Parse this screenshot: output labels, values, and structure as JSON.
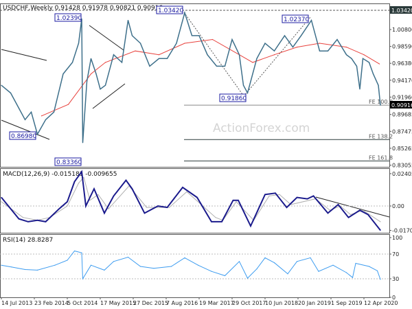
{
  "header": {
    "symbol_line": "USDCHF,Weekly  0.91428 0.91978 0.90821 0.90916"
  },
  "watermark": "ActionForex.com",
  "colors": {
    "price": "#3d6f8a",
    "ma": "#e8413c",
    "macd": "#1a1a8c",
    "signal": "#b0b0b0",
    "rsi": "#3d9cf0",
    "trend": "#222222"
  },
  "chart_data": [
    {
      "type": "line",
      "panel": "price",
      "ylim": [
        0.83055,
        1.0342
      ],
      "y_ticks": [
        "1.00800",
        "0.98590",
        "0.96380",
        "0.94170",
        "0.91960",
        "0.89685",
        "0.87475",
        "0.85265",
        "0.83055"
      ],
      "y_tick_values": [
        1.008,
        0.9859,
        0.9638,
        0.9417,
        0.9196,
        0.89685,
        0.87475,
        0.85265,
        0.83055
      ],
      "last_price_label": "0.90916",
      "top_label": "1.03420",
      "series": [
        {
          "key": "close",
          "points": [
            [
              "2013-07-14",
              0.935
            ],
            [
              "2013-09-15",
              0.925
            ],
            [
              "2013-11-10",
              0.905
            ],
            [
              "2013-12-22",
              0.89
            ],
            [
              "2014-02-02",
              0.9
            ],
            [
              "2014-03-16",
              0.871
            ],
            [
              "2014-05-11",
              0.89
            ],
            [
              "2014-07-06",
              0.9
            ],
            [
              "2014-09-07",
              0.95
            ],
            [
              "2014-11-09",
              0.965
            ],
            [
              "2014-12-21",
              0.99
            ],
            [
              "2015-01-11",
              1.022
            ],
            [
              "2015-01-18",
              0.86
            ],
            [
              "2015-02-15",
              0.94
            ],
            [
              "2015-03-15",
              0.97
            ],
            [
              "2015-04-19",
              0.95
            ],
            [
              "2015-05-17",
              0.93
            ],
            [
              "2015-06-21",
              0.935
            ],
            [
              "2015-08-16",
              0.975
            ],
            [
              "2015-10-11",
              0.965
            ],
            [
              "2015-11-22",
              1.02
            ],
            [
              "2015-12-20",
              1.0
            ],
            [
              "2016-02-14",
              0.99
            ],
            [
              "2016-04-17",
              0.96
            ],
            [
              "2016-06-19",
              0.97
            ],
            [
              "2016-08-14",
              0.97
            ],
            [
              "2016-10-16",
              0.99
            ],
            [
              "2016-12-11",
              1.03
            ],
            [
              "2017-01-29",
              1.0
            ],
            [
              "2017-03-19",
              1.0
            ],
            [
              "2017-05-14",
              0.975
            ],
            [
              "2017-07-16",
              0.96
            ],
            [
              "2017-09-10",
              0.96
            ],
            [
              "2017-10-29",
              0.995
            ],
            [
              "2017-12-17",
              0.975
            ],
            [
              "2018-01-14",
              0.935
            ],
            [
              "2018-02-11",
              0.925
            ],
            [
              "2018-04-15",
              0.97
            ],
            [
              "2018-06-10",
              0.99
            ],
            [
              "2018-08-12",
              0.98
            ],
            [
              "2018-10-21",
              1.0
            ],
            [
              "2018-12-16",
              0.985
            ],
            [
              "2019-02-10",
              1.0
            ],
            [
              "2019-04-21",
              1.02
            ],
            [
              "2019-06-16",
              0.98
            ],
            [
              "2019-08-11",
              0.98
            ],
            [
              "2019-10-13",
              0.995
            ],
            [
              "2019-12-15",
              0.975
            ],
            [
              "2020-01-19",
              0.97
            ],
            [
              "2020-02-23",
              0.96
            ],
            [
              "2020-03-15",
              0.93
            ],
            [
              "2020-04-05",
              0.97
            ],
            [
              "2020-05-17",
              0.965
            ],
            [
              "2020-06-14",
              0.95
            ],
            [
              "2020-07-19",
              0.935
            ],
            [
              "2020-08-02",
              0.909
            ]
          ]
        },
        {
          "key": "ma",
          "points": [
            [
              "2014-04-13",
              0.895
            ],
            [
              "2014-10-12",
              0.91
            ],
            [
              "2015-03-15",
              0.95
            ],
            [
              "2015-06-21",
              0.965
            ],
            [
              "2016-01-10",
              0.98
            ],
            [
              "2016-06-19",
              0.975
            ],
            [
              "2016-12-11",
              0.99
            ],
            [
              "2017-06-18",
              0.995
            ],
            [
              "2017-12-17",
              0.975
            ],
            [
              "2018-03-18",
              0.965
            ],
            [
              "2018-08-12",
              0.975
            ],
            [
              "2019-01-13",
              0.985
            ],
            [
              "2019-06-16",
              0.99
            ],
            [
              "2019-12-15",
              0.985
            ],
            [
              "2020-04-12",
              0.975
            ],
            [
              "2020-07-26",
              0.963
            ]
          ]
        }
      ],
      "annotations": {
        "price_labels": [
          "1.02390",
          "1.03420",
          "1.02370",
          "0.91860",
          "0.86980",
          "0.83360"
        ],
        "fib_levels": [
          {
            "label": "FE 100.0",
            "price": 0.909
          },
          {
            "label": "FE 138.2",
            "price": 0.864
          },
          {
            "label": "FE 161.8",
            "price": 0.836
          }
        ]
      }
    },
    {
      "type": "line",
      "panel": "macd",
      "title": "MACD(12,26,9) -0.015181 -0.009655",
      "ylim": [
        -0.017049,
        0.02405
      ],
      "y_ticks": [
        "0.02405",
        "0.00",
        "-0.017049"
      ],
      "series": [
        {
          "key": "macd",
          "points": [
            [
              "2013-07-14",
              0.006
            ],
            [
              "2013-11-10",
              -0.009
            ],
            [
              "2014-01-12",
              -0.011
            ],
            [
              "2014-03-16",
              -0.01
            ],
            [
              "2014-05-11",
              -0.011
            ],
            [
              "2014-08-10",
              -0.002
            ],
            [
              "2014-10-05",
              0.003
            ],
            [
              "2014-11-23",
              0.017
            ],
            [
              "2015-01-11",
              0.024
            ],
            [
              "2015-02-08",
              0.0
            ],
            [
              "2015-04-05",
              0.012
            ],
            [
              "2015-06-14",
              -0.005
            ],
            [
              "2015-08-16",
              0.007
            ],
            [
              "2015-11-08",
              0.018
            ],
            [
              "2015-12-20",
              0.012
            ],
            [
              "2016-03-13",
              -0.005
            ],
            [
              "2016-06-12",
              0.0
            ],
            [
              "2016-08-14",
              -0.001
            ],
            [
              "2016-11-27",
              0.013
            ],
            [
              "2017-03-05",
              0.006
            ],
            [
              "2017-06-11",
              -0.011
            ],
            [
              "2017-08-20",
              -0.011
            ],
            [
              "2017-11-05",
              0.004
            ],
            [
              "2017-12-10",
              0.004
            ],
            [
              "2018-03-04",
              -0.014
            ],
            [
              "2018-06-10",
              0.008
            ],
            [
              "2018-08-19",
              0.009
            ],
            [
              "2018-11-04",
              -0.001
            ],
            [
              "2019-01-13",
              0.006
            ],
            [
              "2019-03-24",
              0.005
            ],
            [
              "2019-05-05",
              0.007
            ],
            [
              "2019-08-11",
              -0.005
            ],
            [
              "2019-10-20",
              0.001
            ],
            [
              "2019-12-29",
              -0.008
            ],
            [
              "2020-03-15",
              -0.003
            ],
            [
              "2020-05-10",
              -0.006
            ],
            [
              "2020-08-02",
              -0.017
            ]
          ]
        },
        {
          "key": "signal",
          "points": [
            [
              "2013-07-14",
              0.003
            ],
            [
              "2013-12-08",
              -0.008
            ],
            [
              "2014-03-16",
              -0.01
            ],
            [
              "2014-06-08",
              -0.008
            ],
            [
              "2014-10-05",
              0.0
            ],
            [
              "2014-12-21",
              0.016
            ],
            [
              "2015-01-25",
              0.02
            ],
            [
              "2015-03-08",
              0.004
            ],
            [
              "2015-05-03",
              0.008
            ],
            [
              "2015-07-12",
              -0.002
            ],
            [
              "2015-11-29",
              0.014
            ],
            [
              "2016-03-27",
              -0.001
            ],
            [
              "2016-08-28",
              -0.001
            ],
            [
              "2016-12-25",
              0.01
            ],
            [
              "2017-07-09",
              -0.008
            ],
            [
              "2017-08-27",
              -0.01
            ],
            [
              "2017-11-26",
              0.003
            ],
            [
              "2018-03-25",
              -0.01
            ],
            [
              "2018-07-08",
              0.007
            ],
            [
              "2018-09-16",
              0.008
            ],
            [
              "2018-12-02",
              0.001
            ],
            [
              "2019-05-19",
              0.005
            ],
            [
              "2019-08-25",
              -0.003
            ],
            [
              "2019-11-03",
              0.0
            ],
            [
              "2020-01-12",
              -0.006
            ],
            [
              "2020-04-05",
              -0.003
            ],
            [
              "2020-08-02",
              -0.011
            ]
          ]
        }
      ]
    },
    {
      "type": "line",
      "panel": "rsi",
      "title": "RSI(14) 28.8287",
      "ylim": [
        0,
        100
      ],
      "y_ticks": [
        "100",
        "70",
        "30",
        "0"
      ],
      "series": [
        {
          "key": "rsi",
          "points": [
            [
              "2013-07-14",
              52
            ],
            [
              "2013-09-22",
              49
            ],
            [
              "2013-12-22",
              45
            ],
            [
              "2014-03-16",
              44
            ],
            [
              "2014-07-13",
              52
            ],
            [
              "2014-10-05",
              60
            ],
            [
              "2014-11-23",
              75
            ],
            [
              "2015-01-11",
              72
            ],
            [
              "2015-01-18",
              30
            ],
            [
              "2015-03-15",
              52
            ],
            [
              "2015-06-14",
              44
            ],
            [
              "2015-08-16",
              58
            ],
            [
              "2015-11-22",
              65
            ],
            [
              "2016-02-14",
              50
            ],
            [
              "2016-05-15",
              47
            ],
            [
              "2016-09-11",
              50
            ],
            [
              "2016-12-11",
              64
            ],
            [
              "2017-03-12",
              52
            ],
            [
              "2017-06-11",
              42
            ],
            [
              "2017-09-10",
              35
            ],
            [
              "2017-12-17",
              58
            ],
            [
              "2018-02-11",
              31
            ],
            [
              "2018-04-15",
              46
            ],
            [
              "2018-06-10",
              64
            ],
            [
              "2018-08-12",
              56
            ],
            [
              "2018-11-11",
              38
            ],
            [
              "2019-01-13",
              58
            ],
            [
              "2019-04-14",
              64
            ],
            [
              "2019-06-09",
              42
            ],
            [
              "2019-09-15",
              52
            ],
            [
              "2019-12-15",
              40
            ],
            [
              "2020-01-26",
              32
            ],
            [
              "2020-02-16",
              55
            ],
            [
              "2020-05-17",
              50
            ],
            [
              "2020-07-12",
              43
            ],
            [
              "2020-08-02",
              29
            ]
          ]
        }
      ]
    }
  ],
  "x_axis": {
    "tick_labels": [
      "14 Jul 2013",
      "23 Feb 2014",
      "5 Oct 2014",
      "17 May 2015",
      "27 Dec 2015",
      "7 Aug 2016",
      "19 Mar 2017",
      "29 Oct 2017",
      "10 Jun 2018",
      "20 Jan 2019",
      "1 Sep 2019",
      "12 Apr 2020"
    ],
    "tick_dates": [
      "2013-07-14",
      "2014-02-23",
      "2014-10-05",
      "2015-05-17",
      "2015-12-27",
      "2016-08-07",
      "2017-03-19",
      "2017-10-29",
      "2018-06-10",
      "2019-01-20",
      "2019-09-01",
      "2020-04-12"
    ]
  }
}
